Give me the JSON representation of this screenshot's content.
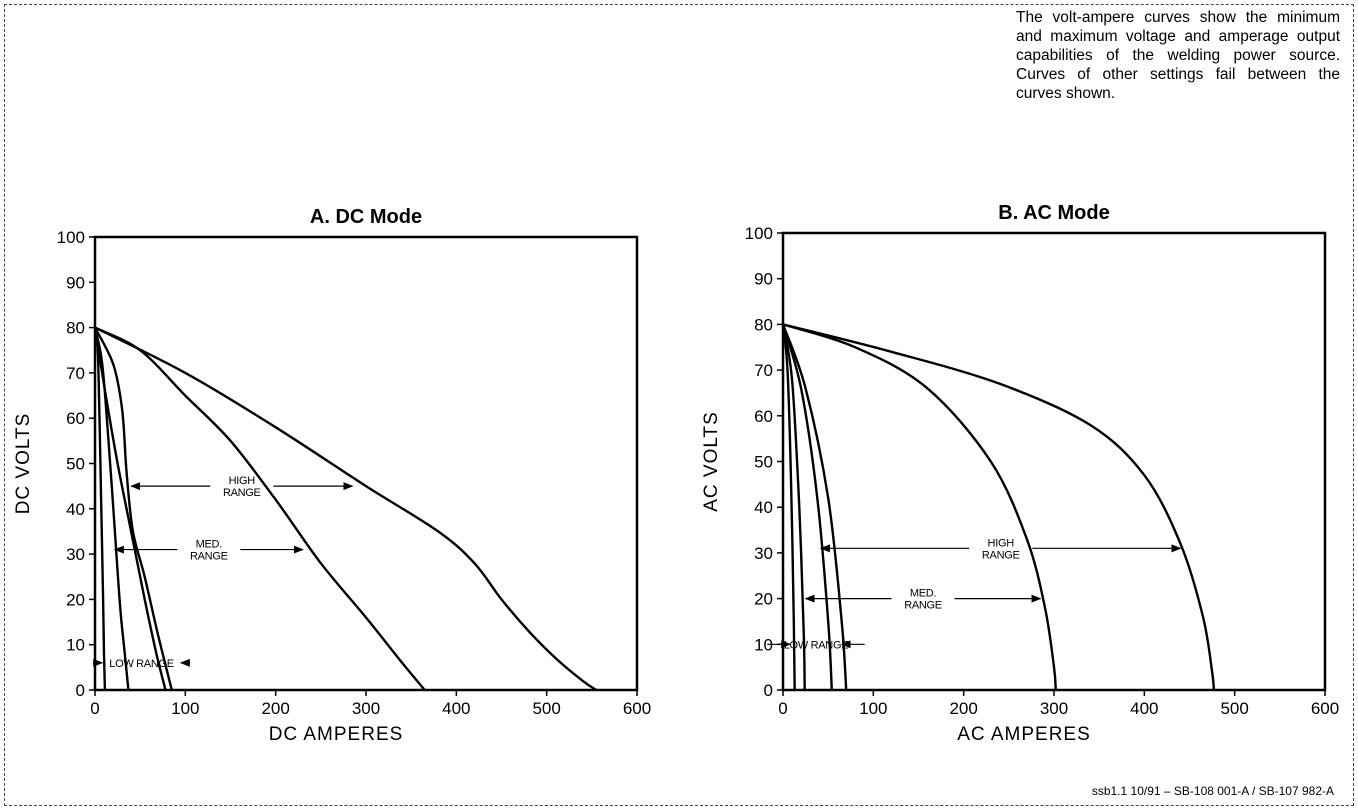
{
  "description": "The volt-ampere curves show the minimum and maximum voltage and amperage output capabilities of the welding power source. Curves of other settings fail between the curves shown.",
  "footer": "ssb1.1 10/91 – SB-108 001-A / SB-107 982-A",
  "chart_data": [
    {
      "type": "line",
      "title": "A. DC Mode",
      "xlabel": "DC AMPERES",
      "ylabel": "DC VOLTS",
      "xlim": [
        0,
        600
      ],
      "ylim": [
        0,
        100
      ],
      "xticks": [
        "0",
        "100",
        "200",
        "300",
        "400",
        "500",
        "600"
      ],
      "yticks": [
        "0",
        "10",
        "20",
        "30",
        "40",
        "50",
        "60",
        "70",
        "80",
        "90",
        "100"
      ],
      "grid": false,
      "annotations": [
        {
          "label": "HIGH RANGE",
          "lines": [
            "HIGH",
            "RANGE"
          ],
          "from_x": 40,
          "to_x": 285,
          "y": 45
        },
        {
          "label": "MED. RANGE",
          "lines": [
            "MED.",
            "RANGE"
          ],
          "from_x": 22,
          "to_x": 230,
          "y": 31
        },
        {
          "label": "LOW RANGE",
          "lines": [
            "LOW RANGE"
          ],
          "from_x": 8,
          "to_x": 95,
          "y": 6
        }
      ],
      "series": [
        {
          "x": [
            0,
            3,
            5,
            7,
            9,
            10,
            11
          ],
          "y": [
            80,
            75,
            60,
            40,
            20,
            8,
            0
          ]
        },
        {
          "x": [
            0,
            8,
            15,
            22,
            28,
            33,
            37
          ],
          "y": [
            80,
            72,
            55,
            35,
            18,
            8,
            0
          ]
        },
        {
          "x": [
            0,
            12,
            25,
            40,
            55,
            68,
            78
          ],
          "y": [
            80,
            65,
            50,
            35,
            20,
            8,
            0
          ]
        },
        {
          "x": [
            0,
            20,
            30,
            35,
            42,
            55,
            70,
            85
          ],
          "y": [
            80,
            72,
            62,
            48,
            35,
            25,
            12,
            0
          ]
        },
        {
          "x": [
            0,
            50,
            100,
            150,
            200,
            250,
            300,
            340,
            365
          ],
          "y": [
            80,
            75,
            65,
            55,
            42,
            28,
            16,
            6,
            0
          ]
        },
        {
          "x": [
            0,
            100,
            200,
            300,
            380,
            420,
            450,
            480,
            510,
            540,
            555
          ],
          "y": [
            80,
            70,
            58,
            45,
            35,
            28,
            20,
            13,
            7,
            2,
            0
          ]
        }
      ]
    },
    {
      "type": "line",
      "title": "B. AC Mode",
      "xlabel": "AC AMPERES",
      "ylabel": "AC VOLTS",
      "xlim": [
        0,
        600
      ],
      "ylim": [
        0,
        100
      ],
      "xticks": [
        "0",
        "100",
        "200",
        "300",
        "400",
        "500",
        "600"
      ],
      "yticks": [
        "0",
        "10",
        "20",
        "30",
        "40",
        "50",
        "60",
        "70",
        "80",
        "90",
        "100"
      ],
      "grid": false,
      "annotations": [
        {
          "label": "HIGH RANGE",
          "lines": [
            "HIGH",
            "RANGE"
          ],
          "from_x": 42,
          "to_x": 440,
          "y": 31
        },
        {
          "label": "MED. RANGE",
          "lines": [
            "MED.",
            "RANGE"
          ],
          "from_x": 25,
          "to_x": 285,
          "y": 20
        },
        {
          "label": "LOW RANGE",
          "lines": [
            "LOW RANGE"
          ],
          "from_x": 8,
          "to_x": 65,
          "y": 10
        }
      ],
      "series": [
        {
          "x": [
            0,
            5,
            9,
            12,
            13
          ],
          "y": [
            80,
            70,
            45,
            15,
            0
          ]
        },
        {
          "x": [
            0,
            10,
            18,
            23,
            24
          ],
          "y": [
            80,
            68,
            40,
            12,
            0
          ]
        },
        {
          "x": [
            0,
            20,
            38,
            50,
            54
          ],
          "y": [
            80,
            66,
            42,
            15,
            0
          ]
        },
        {
          "x": [
            0,
            25,
            50,
            65,
            70
          ],
          "y": [
            80,
            66,
            42,
            15,
            0
          ]
        },
        {
          "x": [
            0,
            80,
            160,
            230,
            270,
            290,
            300,
            302
          ],
          "y": [
            80,
            75,
            66,
            50,
            33,
            18,
            5,
            0
          ]
        },
        {
          "x": [
            0,
            120,
            240,
            340,
            400,
            440,
            465,
            475,
            477
          ],
          "y": [
            80,
            74,
            67,
            58,
            47,
            32,
            16,
            4,
            0
          ]
        }
      ]
    }
  ]
}
